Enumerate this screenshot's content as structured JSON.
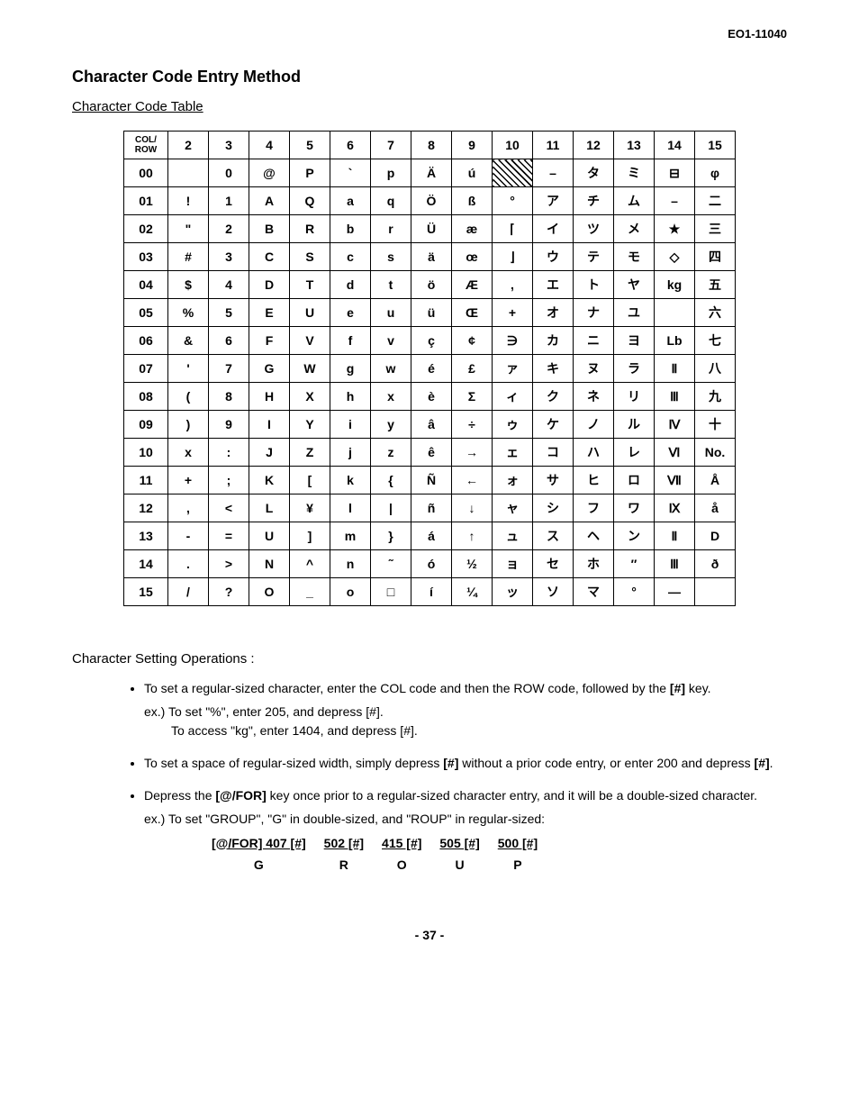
{
  "doc_id": "EO1-11040",
  "title": "Character Code Entry Method",
  "subtitle": "Character Code Table",
  "table": {
    "corner": "COL/\nROW",
    "col_headers": [
      "2",
      "3",
      "4",
      "5",
      "6",
      "7",
      "8",
      "9",
      "10",
      "11",
      "12",
      "13",
      "14",
      "15"
    ],
    "row_headers": [
      "00",
      "01",
      "02",
      "03",
      "04",
      "05",
      "06",
      "07",
      "08",
      "09",
      "10",
      "11",
      "12",
      "13",
      "14",
      "15"
    ],
    "cells": [
      [
        "",
        "0",
        "@",
        "P",
        "`",
        "p",
        "Ä",
        "ú",
        "HATCH",
        "–",
        "タ",
        "ミ",
        "⊟",
        "φ"
      ],
      [
        "!",
        "1",
        "A",
        "Q",
        "a",
        "q",
        "Ö",
        "ß",
        "°",
        "ア",
        "チ",
        "ム",
        "–",
        "二"
      ],
      [
        "\"",
        "2",
        "B",
        "R",
        "b",
        "r",
        "Ü",
        "æ",
        "⌈",
        "イ",
        "ツ",
        "メ",
        "★",
        "三"
      ],
      [
        "#",
        "3",
        "C",
        "S",
        "c",
        "s",
        "ä",
        "œ",
        "⌋",
        "ウ",
        "テ",
        "モ",
        "◇",
        "四"
      ],
      [
        "$",
        "4",
        "D",
        "T",
        "d",
        "t",
        "ö",
        "Æ",
        ",",
        "エ",
        "ト",
        "ヤ",
        "kg",
        "五"
      ],
      [
        "%",
        "5",
        "E",
        "U",
        "e",
        "u",
        "ü",
        "Œ",
        "+",
        "オ",
        "ナ",
        "ユ",
        "",
        "六"
      ],
      [
        "&",
        "6",
        "F",
        "V",
        "f",
        "v",
        "ç",
        "¢",
        "∋",
        "カ",
        "ニ",
        "ヨ",
        "Lb",
        "七"
      ],
      [
        "'",
        "7",
        "G",
        "W",
        "g",
        "w",
        "é",
        "£",
        "ァ",
        "キ",
        "ヌ",
        "ラ",
        "Ⅱ",
        "八"
      ],
      [
        "(",
        "8",
        "H",
        "X",
        "h",
        "x",
        "è",
        "Σ",
        "ィ",
        "ク",
        "ネ",
        "リ",
        "Ⅲ",
        "九"
      ],
      [
        ")",
        "9",
        "I",
        "Y",
        "i",
        "y",
        "â",
        "÷",
        "ゥ",
        "ケ",
        "ノ",
        "ル",
        "Ⅳ",
        "十"
      ],
      [
        "x",
        ":",
        "J",
        "Z",
        "j",
        "z",
        "ê",
        "→",
        "ェ",
        "コ",
        "ハ",
        "レ",
        "Ⅵ",
        "No."
      ],
      [
        "+",
        ";",
        "K",
        "[",
        "k",
        "{",
        "Ñ",
        "←",
        "ォ",
        "サ",
        "ヒ",
        "ロ",
        "Ⅶ",
        "Å"
      ],
      [
        ",",
        "<",
        "L",
        "¥",
        "l",
        "|",
        "ñ",
        "↓",
        "ャ",
        "シ",
        "フ",
        "ワ",
        "Ⅸ",
        "å"
      ],
      [
        "-",
        "=",
        "U",
        "]",
        "m",
        "}",
        "á",
        "↑",
        "ュ",
        "ス",
        "ヘ",
        "ン",
        "Ⅱ",
        "D"
      ],
      [
        ".",
        ">",
        "N",
        "^",
        "n",
        "˜",
        "ó",
        "½",
        "ョ",
        "セ",
        "ホ",
        "″",
        "Ⅲ",
        "ð"
      ],
      [
        "/",
        "?",
        "O",
        "_",
        "o",
        "□",
        "í",
        "¼",
        "ッ",
        "ソ",
        "マ",
        "°",
        "—",
        ""
      ]
    ]
  },
  "ops_heading": "Character Setting Operations :",
  "bullet1_a": "To set a regular-sized character, enter the COL code and then the ROW code, followed by the ",
  "bullet1_b": "[#]",
  "bullet1_c": " key.",
  "bullet1_ex1": "ex.) To set \"%\", enter 205, and depress [#].",
  "bullet1_ex2": "To access \"kg\", enter 1404, and depress [#].",
  "bullet2_a": "To set a space of regular-sized width, simply depress ",
  "bullet2_b": "[#]",
  "bullet2_c": " without a prior code entry, or enter 200 and depress ",
  "bullet2_d": "[#]",
  "bullet2_e": ".",
  "bullet3_a": "Depress the ",
  "bullet3_b": "[@/FOR]",
  "bullet3_c": " key once prior to a regular-sized character entry, and it will be a double-sized character.",
  "bullet3_ex": "ex.) To set \"GROUP\", \"G\" in double-sized, and \"ROUP\" in regular-sized:",
  "group": {
    "codes": [
      "[@/FOR] 407 [#]",
      "502 [#]",
      "415 [#]",
      "505 [#]",
      "500 [#]"
    ],
    "letters": [
      "G",
      "R",
      "O",
      "U",
      "P"
    ]
  },
  "page_number": "- 37 -"
}
